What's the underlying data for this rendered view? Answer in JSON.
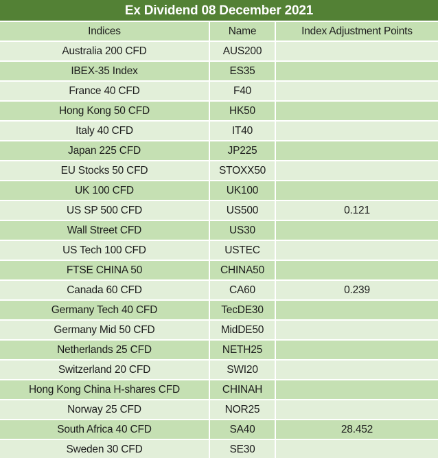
{
  "title": "Ex Dividend 08 December 2021",
  "columns": {
    "indices": "Indices",
    "name": "Name",
    "points": "Index Adjustment Points"
  },
  "colors": {
    "title_bg": "#538135",
    "title_text": "#ffffff",
    "header_bg": "#c5e0b3",
    "row_light": "#e2efd9",
    "row_medium": "#c5e0b3",
    "cell_text": "#1c1c1c",
    "grid": "#ffffff"
  },
  "rows": [
    {
      "indices": "Australia 200 CFD",
      "name": "AUS200",
      "points": ""
    },
    {
      "indices": "IBEX-35 Index",
      "name": "ES35",
      "points": ""
    },
    {
      "indices": "France 40 CFD",
      "name": "F40",
      "points": ""
    },
    {
      "indices": "Hong Kong 50 CFD",
      "name": "HK50",
      "points": ""
    },
    {
      "indices": "Italy 40 CFD",
      "name": "IT40",
      "points": ""
    },
    {
      "indices": "Japan 225 CFD",
      "name": "JP225",
      "points": ""
    },
    {
      "indices": "EU Stocks 50 CFD",
      "name": "STOXX50",
      "points": ""
    },
    {
      "indices": "UK 100 CFD",
      "name": "UK100",
      "points": ""
    },
    {
      "indices": "US SP 500 CFD",
      "name": "US500",
      "points": "0.121"
    },
    {
      "indices": "Wall Street CFD",
      "name": "US30",
      "points": ""
    },
    {
      "indices": "US Tech 100 CFD",
      "name": "USTEC",
      "points": ""
    },
    {
      "indices": "FTSE CHINA 50",
      "name": "CHINA50",
      "points": ""
    },
    {
      "indices": "Canada 60 CFD",
      "name": "CA60",
      "points": "0.239"
    },
    {
      "indices": "Germany Tech 40 CFD",
      "name": "TecDE30",
      "points": ""
    },
    {
      "indices": "Germany Mid 50 CFD",
      "name": "MidDE50",
      "points": ""
    },
    {
      "indices": "Netherlands 25 CFD",
      "name": "NETH25",
      "points": ""
    },
    {
      "indices": "Switzerland 20 CFD",
      "name": "SWI20",
      "points": ""
    },
    {
      "indices": "Hong Kong China H-shares CFD",
      "name": "CHINAH",
      "points": ""
    },
    {
      "indices": "Norway 25 CFD",
      "name": "NOR25",
      "points": ""
    },
    {
      "indices": "South Africa 40 CFD",
      "name": "SA40",
      "points": "28.452"
    },
    {
      "indices": "Sweden 30 CFD",
      "name": "SE30",
      "points": ""
    }
  ]
}
